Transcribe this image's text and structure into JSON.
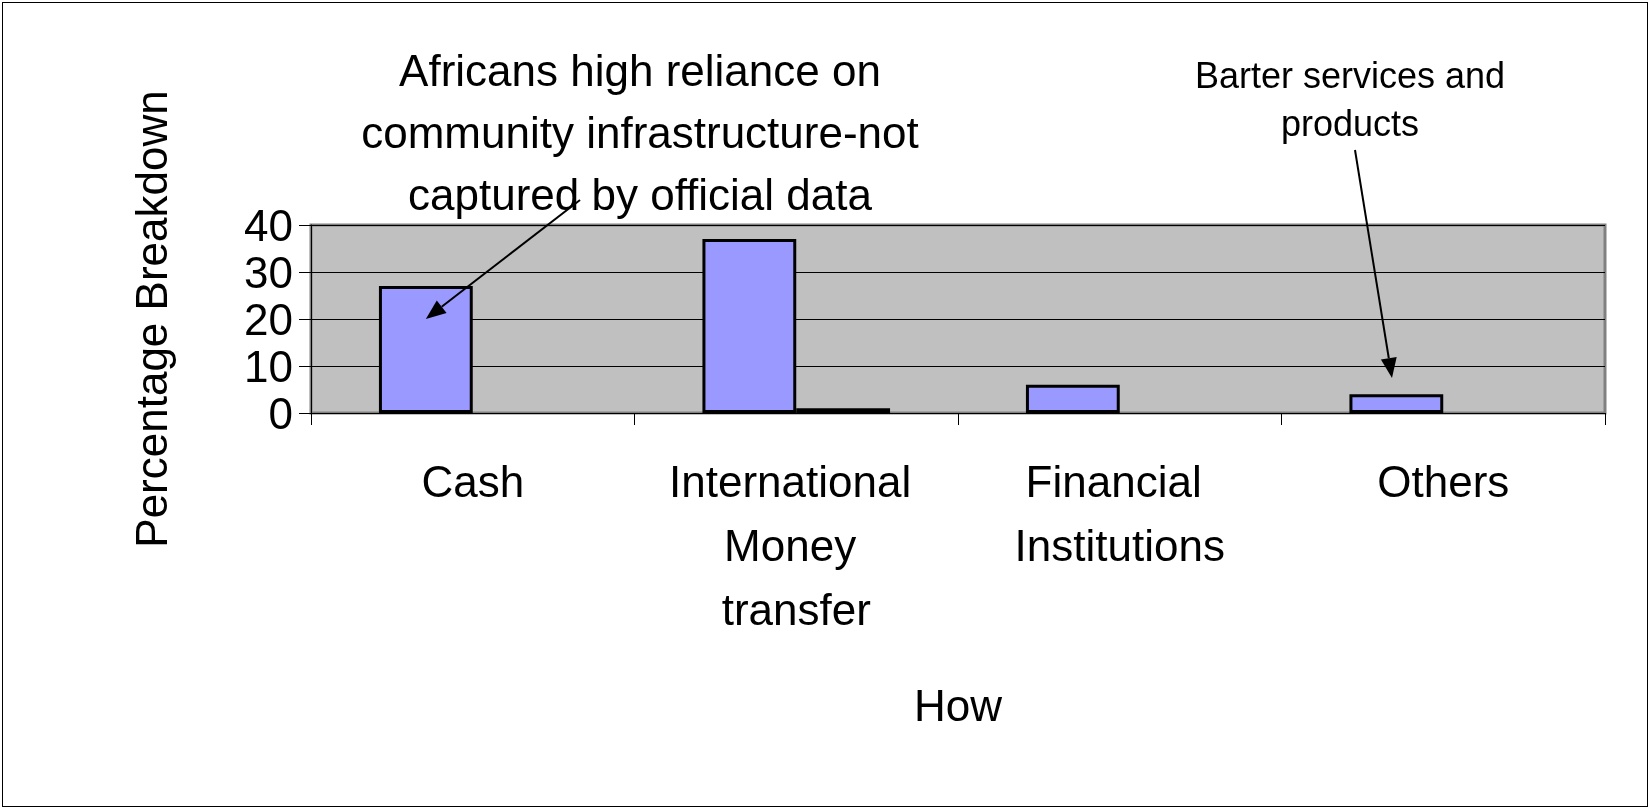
{
  "chart_data": {
    "type": "bar",
    "xlabel": "How",
    "ylabel": "Percentage Breakdown",
    "categories": [
      "Cash",
      "International Money transfer",
      "Financial Institutions",
      "Others"
    ],
    "series": [
      {
        "color": "#9999ff",
        "values": [
          27,
          37,
          6,
          4
        ]
      },
      {
        "color": "#000000",
        "values": [
          null,
          1,
          null,
          null
        ]
      }
    ],
    "ylim": [
      0,
      40
    ],
    "yticks": [
      0,
      10,
      20,
      30,
      40
    ],
    "grid": "y",
    "annotations": [
      {
        "text": "Africans high reliance on community infrastructure-not captured by official data",
        "x": "Cash",
        "y": 20
      },
      "Barter services and products"
    ]
  }
}
